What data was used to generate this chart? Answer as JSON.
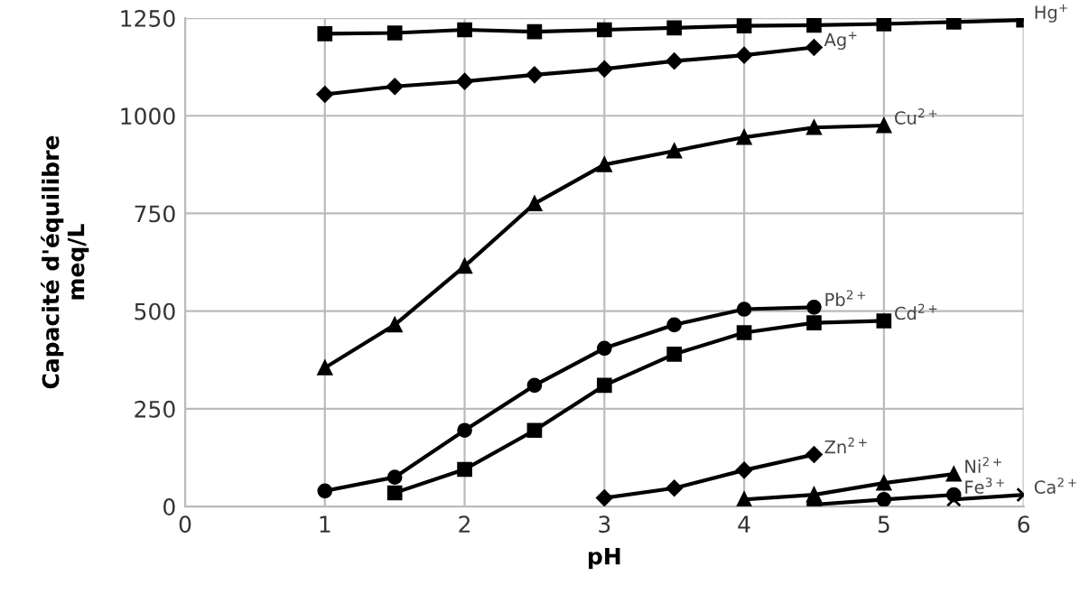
{
  "chart_data": {
    "type": "line",
    "xlabel": "pH",
    "ylabel": "Capacité d'équilibre\nmeq/L",
    "xlim": [
      0,
      6
    ],
    "xticks": [
      0,
      1,
      2,
      3,
      4,
      5,
      6
    ],
    "ylim": [
      0,
      1250
    ],
    "yticks": [
      0,
      250,
      500,
      750,
      1000,
      1250
    ],
    "grid": true,
    "legend": false,
    "series": [
      {
        "name": "Hg$^{+}$",
        "color": "#000000",
        "marker": "square",
        "x": [
          1,
          1.5,
          2,
          2.5,
          3,
          3.5,
          4,
          4.5,
          5,
          5.5,
          6
        ],
        "values": [
          1210,
          1212,
          1220,
          1215,
          1220,
          1225,
          1230,
          1232,
          1235,
          1240,
          1245
        ]
      },
      {
        "name": "Ag$^{+}$",
        "color": "#000000",
        "marker": "diamond",
        "x": [
          1,
          1.5,
          2,
          2.5,
          3,
          3.5,
          4,
          4.5
        ],
        "values": [
          1055,
          1075,
          1088,
          1105,
          1120,
          1140,
          1155,
          1175
        ]
      },
      {
        "name": "Cu$^{2+}$",
        "color": "#000000",
        "marker": "triangle",
        "x": [
          1,
          1.5,
          2,
          2.5,
          3,
          3.5,
          4,
          4.5,
          5
        ],
        "values": [
          355,
          465,
          615,
          775,
          875,
          910,
          945,
          970,
          975
        ]
      },
      {
        "name": "Pb$^{2+}$",
        "color": "#000000",
        "marker": "circle",
        "x": [
          1,
          1.5,
          2,
          2.5,
          3,
          3.5,
          4,
          4.5
        ],
        "values": [
          40,
          75,
          195,
          310,
          405,
          465,
          505,
          510
        ]
      },
      {
        "name": "Cd$^{2+}$",
        "color": "#000000",
        "marker": "square",
        "x": [
          1.5,
          2,
          2.5,
          3,
          3.5,
          4,
          4.5,
          5
        ],
        "values": [
          35,
          95,
          195,
          310,
          390,
          445,
          470,
          475
        ]
      },
      {
        "name": "Zn$^{2+}$",
        "color": "#000000",
        "marker": "diamond",
        "x": [
          3,
          3.5,
          4,
          4.5
        ],
        "values": [
          22,
          47,
          93,
          133
        ]
      },
      {
        "name": "Ni$^{2+}$",
        "color": "#000000",
        "marker": "triangle",
        "x": [
          4,
          4.5,
          5,
          5.5
        ],
        "values": [
          18,
          30,
          60,
          83
        ]
      },
      {
        "name": "Fe$^{3+}$",
        "color": "#000000",
        "marker": "circle",
        "x": [
          4.5,
          5,
          5.5
        ],
        "values": [
          5,
          18,
          30
        ]
      },
      {
        "name": "Ca$^{2+}$",
        "color": "#000000",
        "marker": "cross",
        "x": [
          5.5,
          6
        ],
        "values": [
          18,
          30
        ]
      }
    ]
  }
}
